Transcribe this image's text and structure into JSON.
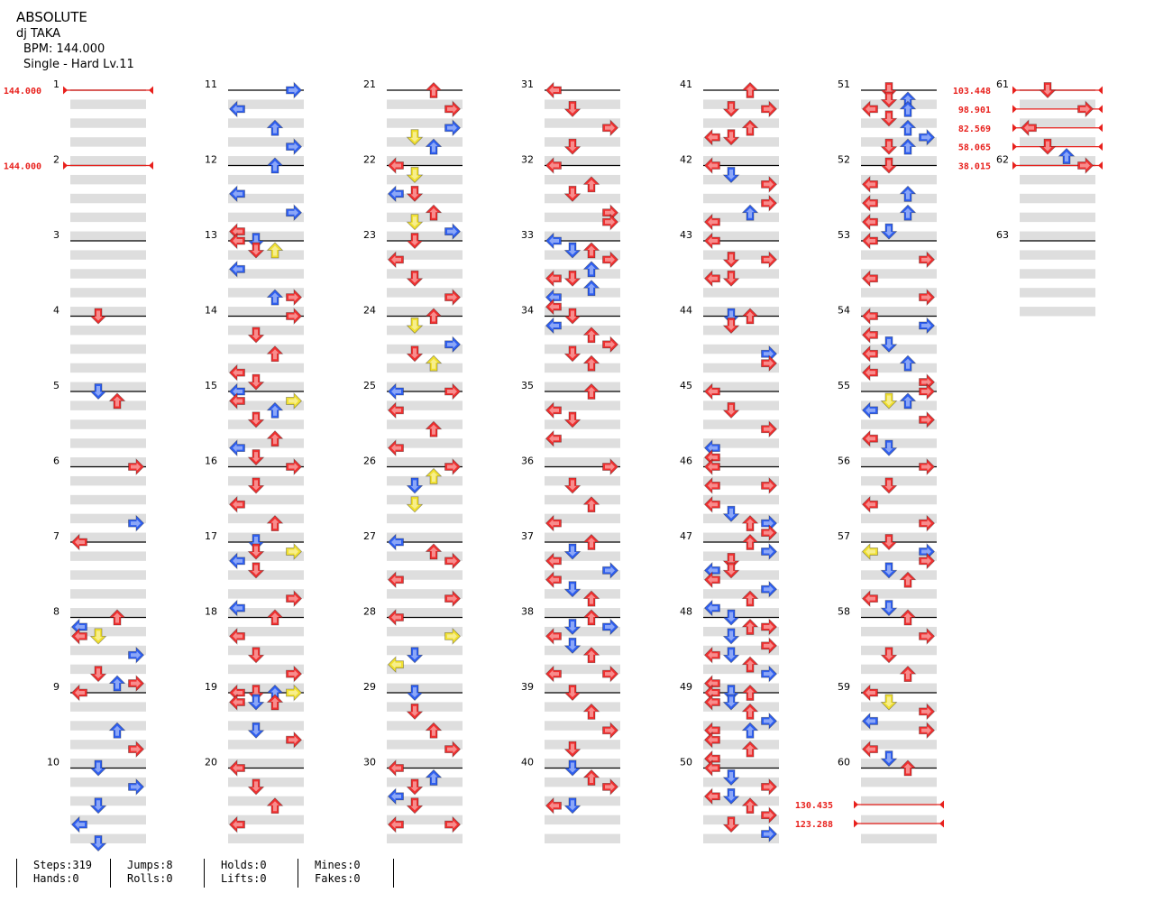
{
  "song": {
    "title": "ABSOLUTE",
    "artist": "dj TAKA",
    "bpm_line": "BPM: 144.000",
    "difficulty_line": "Single - Hard  Lv.11"
  },
  "colors": {
    "red_arrow": "#f03030",
    "blue_arrow": "#2f5ff0",
    "yellow_arrow": "#f0e030",
    "bpm_marker": "#e8201c",
    "band": "#dedede"
  },
  "bpm_changes": [
    {
      "measure": 1,
      "label": "144.000"
    },
    {
      "measure": 2,
      "label": "144.000"
    },
    {
      "measure": 51.1,
      "label": "130.435"
    },
    {
      "measure": 51.2,
      "label": "123.288"
    },
    {
      "measure": 61,
      "label": "103.448"
    },
    {
      "measure": 61.25,
      "label": "98.901"
    },
    {
      "measure": 61.5,
      "label": "82.569"
    },
    {
      "measure": 61.75,
      "label": "58.065"
    },
    {
      "measure": 62,
      "label": "38.015"
    }
  ],
  "measure_labels": [
    "1",
    "2",
    "3",
    "4",
    "5",
    "6",
    "7",
    "8",
    "9",
    "10",
    "11",
    "12",
    "13",
    "14",
    "15",
    "16",
    "17",
    "18",
    "19",
    "20",
    "21",
    "22",
    "23",
    "24",
    "25",
    "26",
    "27",
    "28",
    "29",
    "30",
    "31",
    "32",
    "33",
    "34",
    "35",
    "36",
    "37",
    "38",
    "39",
    "40",
    "41",
    "42",
    "43",
    "44",
    "45",
    "46",
    "47",
    "48",
    "49",
    "50",
    "51",
    "52",
    "53",
    "54",
    "55",
    "56",
    "57",
    "58",
    "59",
    "60",
    "61",
    "62",
    "63"
  ],
  "arrow_icon_names": {
    "L": "left-arrow-icon",
    "D": "down-arrow-icon",
    "U": "up-arrow-icon",
    "R": "right-arrow-icon"
  },
  "notes_by_measure": {
    "1": [],
    "2": [],
    "3": [],
    "4": [
      "0:D:r"
    ],
    "5": [
      "0:D:b",
      "0.25:U:r"
    ],
    "6": [
      "0:R:r"
    ],
    "7": [
      "-0.5:R:b",
      "0:L:r"
    ],
    "8": [
      "0:U:r",
      "0.25:L:b",
      "0.5:L:r",
      "0.5:D:y",
      "1:R:b",
      "1.5:D:r",
      "1.75:R:r"
    ],
    "9": [
      "0:L:r",
      "-0.25:U:b",
      "1:U:b",
      "1.5:R:r",
      "2:D:b"
    ],
    "10": [
      "0.5:R:b",
      "1:D:b",
      "1.5:L:b",
      "2:D:b"
    ],
    "11": [
      "0:R:b",
      "0.5:L:b",
      "1:U:b",
      "1.5:R:b"
    ],
    "12": [
      "0:U:b",
      "0.75:L:b",
      "1.25:R:b",
      "1.75:L:r"
    ],
    "13": [
      "0:L:r",
      "0:D:b",
      "0.25:D:r",
      "0.25:U:y",
      "0.75:L:b",
      "1.5:U:b",
      "1.5:R:r"
    ],
    "14": [
      "0:R:r",
      "0.5:D:r",
      "1:U:r",
      "1.5:L:r",
      "1.75:D:r"
    ],
    "15": [
      "0:L:b",
      "0.25:L:r",
      "0.25:R:y",
      "0.5:U:b",
      "0.75:D:r",
      "1.25:U:r",
      "1.5:L:b",
      "1.75:D:r"
    ],
    "16": [
      "0:R:r",
      "0.5:D:r",
      "1:L:r",
      "1.5:U:r"
    ],
    "17": [
      "0:D:b",
      "0.25:D:r",
      "0.25:R:y",
      "0.5:L:b",
      "0.75:D:r",
      "1.5:R:r",
      "1.75:L:b"
    ],
    "18": [
      "0:U:r",
      "0.5:L:r",
      "1:D:r",
      "1.5:R:r"
    ],
    "19": [
      "0:L:r",
      "0:D:r",
      "0:U:b",
      "0:R:y",
      "0.25:L:r",
      "0.25:D:b",
      "0.25:U:r",
      "1:D:b",
      "1.25:R:r"
    ],
    "20": [
      "0:L:r",
      "0.5:D:r",
      "1:U:r",
      "1.5:L:r"
    ],
    "21": [
      "0:U:r",
      "0.5:R:r",
      "1:R:b",
      "1.25:D:y",
      "1.5:U:b"
    ],
    "22": [
      "0:L:r",
      "0.25:D:y",
      "0.75:L:b",
      "0.75:D:r",
      "1.25:U:r",
      "1.5:D:y",
      "1.75:R:b"
    ],
    "23": [
      "0:D:r",
      "0.5:L:r",
      "1:D:r",
      "1.5:R:r"
    ],
    "24": [
      "0:U:r",
      "0.25:D:y",
      "0.75:R:b",
      "1:D:r",
      "1.25:U:y"
    ],
    "25": [
      "0:L:b",
      "0:R:r",
      "0.5:L:r",
      "1:U:r",
      "1.5:L:r"
    ],
    "26": [
      "0:R:r",
      "0.25:U:y",
      "0.5:D:b",
      "1:D:y"
    ],
    "27": [
      "0:L:b",
      "0.25:U:r",
      "0.5:R:r",
      "1:L:r",
      "1.5:R:r"
    ],
    "28": [
      "0:L:r",
      "0.5:R:y",
      "1:D:b",
      "1.25:L:y"
    ],
    "29": [
      "0:D:b",
      "0.5:D:r",
      "1:U:r",
      "1.5:R:r"
    ],
    "30": [
      "0:L:r",
      "0.25:U:b",
      "0.5:D:r",
      "0.75:L:b",
      "1:D:r",
      "1.5:L:r",
      "1.5:R:r"
    ],
    "31": [
      "0:L:r",
      "0.5:D:r",
      "1:R:r",
      "1.5:D:r"
    ],
    "32": [
      "0:L:r",
      "0.5:U:r",
      "0.75:D:r",
      "1.25:R:r",
      "1.5:R:r"
    ],
    "33": [
      "0:L:b",
      "0.25:D:b",
      "0.25:U:r",
      "0.5:R:r",
      "0.75:U:b",
      "1:L:r",
      "1:D:r",
      "1.25:U:b",
      "1.5:L:b",
      "1.75:L:r"
    ],
    "34": [
      "0:D:r",
      "0.25:L:b",
      "0.5:U:r",
      "0.75:R:r",
      "1:D:r",
      "1.25:U:r"
    ],
    "35": [
      "0:U:r",
      "0.5:L:r",
      "0.75:D:r",
      "1.25:L:r"
    ],
    "36": [
      "0:R:r",
      "0.5:D:r",
      "1:U:r",
      "1.5:L:r"
    ],
    "37": [
      "0:U:r",
      "0.25:D:b",
      "0.5:L:r",
      "0.75:R:b",
      "1:L:r",
      "1.25:D:b",
      "1.5:U:r"
    ],
    "38": [
      "0:U:r",
      "0.25:R:b",
      "0.25:D:b",
      "0.5:L:r",
      "0.75:D:b",
      "1:U:r",
      "1.5:L:r",
      "1.5:R:r"
    ],
    "39": [
      "0:D:r",
      "0.5:U:r",
      "1:R:r",
      "1.5:D:r"
    ],
    "40": [
      "0:D:b",
      "0.25:U:r",
      "0.5:R:r",
      "1:L:r",
      "1:D:b"
    ],
    "41": [
      "0:U:r",
      "0.5:D:r",
      "0.5:R:r",
      "1:U:r",
      "1.25:L:r",
      "1.25:D:r"
    ],
    "42": [
      "0:L:r",
      "0.25:D:b",
      "0.5:R:r",
      "1:R:r",
      "1.25:U:b",
      "1.5:L:r"
    ],
    "43": [
      "0:L:r",
      "0.5:D:r",
      "0.5:R:r",
      "1:L:r",
      "1:D:r"
    ],
    "44": [
      "0:D:b",
      "0.25:D:r",
      "0:U:r",
      "1:R:b",
      "1.25:R:r"
    ],
    "45": [
      "0:L:r",
      "0.5:D:r",
      "1:R:r",
      "1.5:L:b",
      "1.75:L:r"
    ],
    "46": [
      "0:L:r",
      "0.5:R:r",
      "0.5:L:r",
      "1:L:r",
      "1.25:D:b",
      "1.5:U:r",
      "1.5:R:b",
      "1.75:R:r"
    ],
    "47": [
      "0:U:r",
      "0.25:R:b",
      "0.5:D:r",
      "0.75:L:b",
      "0.75:D:r",
      "1:L:r",
      "1.25:R:b",
      "1.5:U:r",
      "1.75:L:b"
    ],
    "48": [
      "0:D:b",
      "0.25:U:r",
      "0.25:R:r",
      "0.5:D:b",
      "0.75:R:r",
      "1:L:r",
      "1:D:b",
      "1.25:U:r",
      "1.5:R:b",
      "1.75:L:r"
    ],
    "49": [
      "0:L:r",
      "0:D:b",
      "0:U:r",
      "0.25:L:r",
      "0.25:D:b",
      "0.5:U:r",
      "0.75:R:b",
      "1:L:r",
      "1:U:b",
      "1.25:L:r",
      "1.5:U:r",
      "1.75:L:r"
    ],
    "50": [
      "0:L:r",
      "0.25:D:b",
      "0.5:R:r",
      "0.75:L:r",
      "0.75:D:b",
      "1:U:r",
      "1.25:R:r",
      "1.5:D:r",
      "1.75:R:b"
    ],
    "51": [
      "0:D:r",
      "0.25:D:r",
      "0.25:U:b",
      "0.5:L:r",
      "0.5:U:b",
      "0.75:D:r",
      "1:U:b",
      "1.25:R:b",
      "1.5:D:r",
      "1.5:U:b"
    ],
    "52": [
      "0:D:r",
      "0.5:L:r",
      "0.75:U:b",
      "1:L:r",
      "1.25:U:b",
      "1.5:L:r",
      "1.75:D:b"
    ],
    "53": [
      "0:L:r",
      "0.5:R:r",
      "1:L:r",
      "1.5:R:r"
    ],
    "54": [
      "0:L:r",
      "0.25:R:b",
      "0.5:L:r",
      "0.75:D:b",
      "1:L:r",
      "1.25:U:b",
      "1.5:L:r",
      "1.75:R:r"
    ],
    "55": [
      "0:R:r",
      "0.25:U:b",
      "0.25:D:y",
      "0.5:L:b",
      "0.75:R:r",
      "1.25:L:r",
      "1.5:D:b"
    ],
    "56": [
      "0:R:r",
      "0.5:D:r",
      "1:L:r",
      "1.5:R:r"
    ],
    "57": [
      "0:D:r",
      "0.25:L:y",
      "0.25:R:b",
      "0.5:R:r",
      "0.75:D:b",
      "1:U:r",
      "1.5:L:r",
      "1.75:D:b"
    ],
    "58": [
      "0:U:r",
      "0.5:R:r",
      "1:D:r",
      "1.5:U:r"
    ],
    "59": [
      "0:L:r",
      "0.25:D:y",
      "0.5:R:r",
      "0.75:L:b",
      "1:R:r",
      "1.5:L:r",
      "1.75:D:b"
    ],
    "60": [
      "0:U:r"
    ],
    "61": [
      "0:D:r",
      "0.5:R:r",
      "1:L:r",
      "1.5:D:r",
      "1.75:U:b"
    ],
    "62": [
      "0:R:r"
    ],
    "63": []
  },
  "stats": {
    "steps": "Steps:319",
    "hands": "Hands:0",
    "jumps": "Jumps:8",
    "rolls": "Rolls:0",
    "holds": "Holds:0",
    "lifts": "Lifts:0",
    "mines": "Mines:0",
    "fakes": "Fakes:0"
  }
}
